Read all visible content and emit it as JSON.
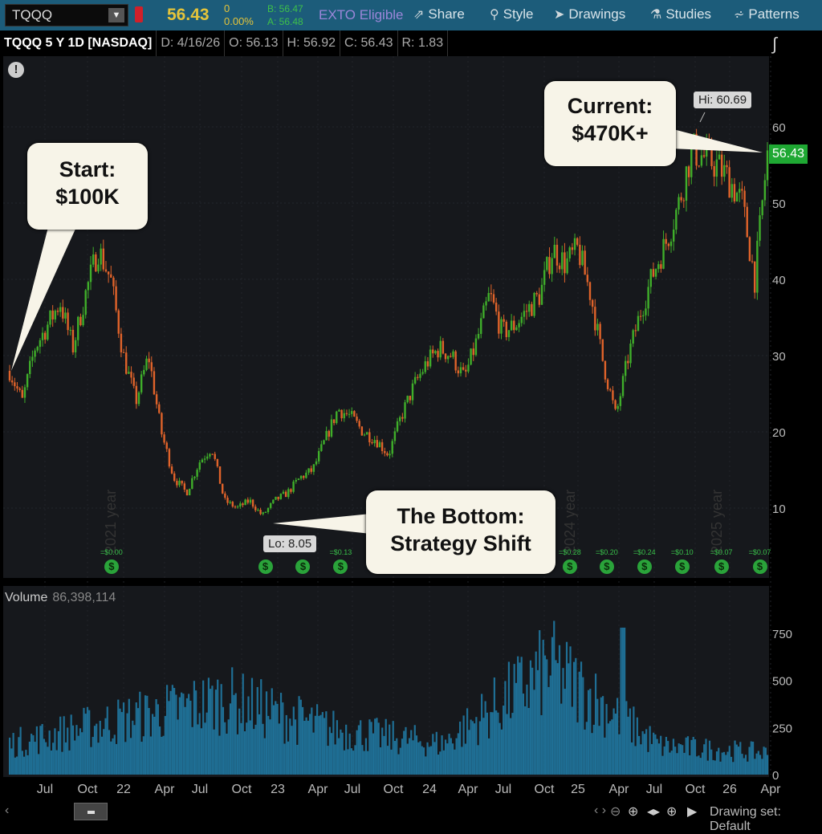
{
  "toolbar": {
    "symbol": "TQQQ",
    "last": "56.43",
    "change": "0",
    "change_pct": "0.00%",
    "bid": "B: 56.47",
    "ask": "A: 56.48",
    "exto": "EXTO Eligible",
    "buttons": [
      {
        "label": "Share",
        "icon": "share-icon"
      },
      {
        "label": "Style",
        "icon": "style-icon"
      },
      {
        "label": "Drawings",
        "icon": "cursor-icon"
      },
      {
        "label": "Studies",
        "icon": "flask-icon"
      },
      {
        "label": "Patterns",
        "icon": "patterns-icon"
      }
    ]
  },
  "infobar": {
    "title": "TQQQ 5 Y 1D [NASDAQ]",
    "date": "D: 4/16/26",
    "open": "O: 56.13",
    "high": "H: 56.92",
    "close": "C: 56.43",
    "range": "R: 1.83"
  },
  "annotations": {
    "start": "Start:\n$100K",
    "current": "Current:\n$470K+",
    "bottom": "The Bottom:\nStrategy Shift",
    "hi": "Hi: 60.69",
    "lo": "Lo: 8.05",
    "current_price": "56.43"
  },
  "year_watermarks": [
    "2021 year",
    "2024 year",
    "2025 year"
  ],
  "dividends": [
    {
      "label": "=$0.00",
      "x": 0.145
    },
    {
      "label": "",
      "x": 0.345
    },
    {
      "label": "",
      "x": 0.394
    },
    {
      "label": "=$0.13",
      "x": 0.443
    },
    {
      "label": "=$0.28",
      "x": 0.741
    },
    {
      "label": "=$0.20",
      "x": 0.789
    },
    {
      "label": "=$0.24",
      "x": 0.838
    },
    {
      "label": "=$0.10",
      "x": 0.887
    },
    {
      "label": "=$0.07",
      "x": 0.938
    },
    {
      "label": "=$0.07",
      "x": 0.988
    }
  ],
  "volume": {
    "label": "Volume",
    "value": "86,398,114"
  },
  "bottom": {
    "drawing_set": "Drawing set: Default"
  },
  "colors": {
    "up": "#3fae2a",
    "down": "#e0632a",
    "volume": "#1f6f95",
    "toolbar": "#1c5c7a"
  },
  "chart_data": [
    {
      "type": "candlestick",
      "title": "TQQQ 5 Y 1D [NASDAQ]",
      "ylim": [
        0,
        66
      ],
      "yticks": [
        10,
        20,
        30,
        40,
        50,
        60
      ],
      "xticks": [
        "Jul",
        "Oct",
        "22",
        "Apr",
        "Jul",
        "Oct",
        "23",
        "Apr",
        "Jul",
        "Oct",
        "24",
        "Apr",
        "Jul",
        "Oct",
        "25",
        "Apr",
        "Jul",
        "Oct",
        "26",
        "Apr"
      ],
      "x": [
        "2021-04",
        "2021-05",
        "2021-06",
        "2021-07",
        "2021-08",
        "2021-09",
        "2021-10",
        "2021-11",
        "2021-12",
        "2022-01",
        "2022-02",
        "2022-03",
        "2022-04",
        "2022-05",
        "2022-06",
        "2022-07",
        "2022-08",
        "2022-09",
        "2022-10",
        "2022-11",
        "2022-12",
        "2023-01",
        "2023-02",
        "2023-03",
        "2023-04",
        "2023-05",
        "2023-06",
        "2023-07",
        "2023-08",
        "2023-09",
        "2023-10",
        "2023-11",
        "2023-12",
        "2024-01",
        "2024-02",
        "2024-03",
        "2024-04",
        "2024-05",
        "2024-06",
        "2024-07",
        "2024-08",
        "2024-09",
        "2024-10",
        "2024-11",
        "2024-12",
        "2025-01",
        "2025-02",
        "2025-03",
        "2025-04",
        "2025-05",
        "2025-06",
        "2025-07",
        "2025-08",
        "2025-09",
        "2025-10",
        "2025-11",
        "2025-12",
        "2026-01",
        "2026-02",
        "2026-03",
        "2026-04"
      ],
      "close": [
        28,
        24,
        31,
        34,
        37,
        31,
        38,
        44,
        40,
        30,
        24,
        30,
        20,
        14,
        12,
        16,
        18,
        11,
        10,
        11,
        9,
        11,
        12,
        14,
        15,
        19,
        23,
        22,
        20,
        19,
        17,
        22,
        26,
        29,
        31,
        30,
        27,
        32,
        38,
        33,
        34,
        36,
        38,
        44,
        42,
        44,
        38,
        29,
        22,
        30,
        36,
        41,
        45,
        50,
        57,
        56,
        55,
        53,
        50,
        40,
        56.43
      ]
    },
    {
      "type": "bar",
      "title": "Volume",
      "yticks": [
        0,
        250,
        500,
        750
      ],
      "x": [
        "2021",
        "2022-H1",
        "2022-H2",
        "2023",
        "2024",
        "2025-04",
        "2025-H2",
        "2026"
      ],
      "values": [
        170,
        300,
        420,
        250,
        170,
        600,
        160,
        120
      ]
    }
  ]
}
